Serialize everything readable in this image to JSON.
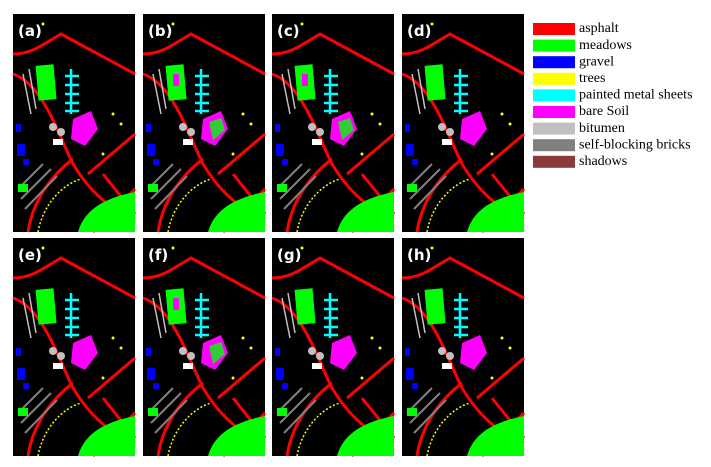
{
  "panels": [
    {
      "label": "(a)"
    },
    {
      "label": "(b)"
    },
    {
      "label": "(c)"
    },
    {
      "label": "(d)"
    },
    {
      "label": "(e)"
    },
    {
      "label": "(f)"
    },
    {
      "label": "(g)"
    },
    {
      "label": "(h)"
    }
  ],
  "legend": [
    {
      "label": "asphalt",
      "color": "#ff0000"
    },
    {
      "label": "meadows",
      "color": "#00ff00"
    },
    {
      "label": "gravel",
      "color": "#0000ff"
    },
    {
      "label": "trees",
      "color": "#ffff00"
    },
    {
      "label": "painted metal sheets",
      "color": "#00ffff"
    },
    {
      "label": "bare Soil",
      "color": "#ff00ff"
    },
    {
      "label": "bitumen",
      "color": "#c0c0c0"
    },
    {
      "label": "self-blocking bricks",
      "color": "#808080"
    },
    {
      "label": "shadows",
      "color": "#8b3a3a"
    }
  ]
}
